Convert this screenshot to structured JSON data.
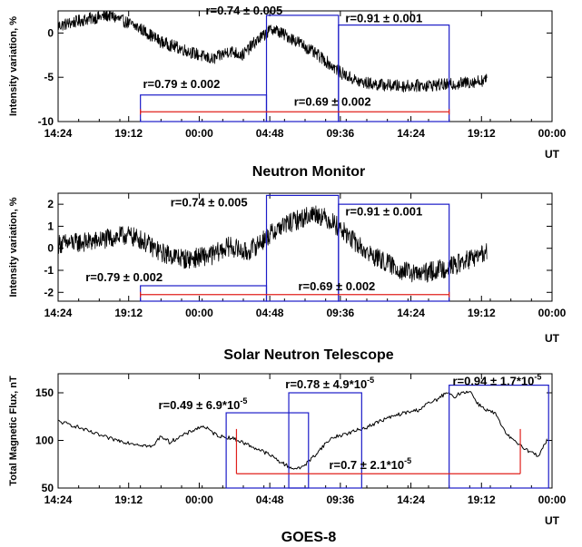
{
  "chart_data": [
    {
      "type": "line",
      "title": "Neutron Monitor",
      "ylabel": "Intensity variation, %",
      "xunit": "UT",
      "x_tick_labels": [
        "14:24",
        "19:12",
        "00:00",
        "04:48",
        "09:36",
        "14:24",
        "19:12",
        "00:00"
      ],
      "xlim_hours": [
        0,
        57.6
      ],
      "ylim": [
        -10,
        2.5
      ],
      "y_ticks": [
        0,
        -5,
        -10
      ],
      "y_tick_labels": [
        "0",
        "-5",
        "-10"
      ],
      "series": [
        {
          "x": [
            0,
            3,
            6,
            8,
            9.6,
            12,
            15,
            18,
            20,
            21.5,
            23,
            25,
            26,
            28,
            31,
            33,
            35,
            37,
            40,
            43,
            46,
            50
          ],
          "values": [
            0.8,
            1.5,
            2.0,
            1.2,
            0.5,
            -1.0,
            -2.0,
            -3.0,
            -2.0,
            -2.5,
            -1.0,
            0.5,
            0.0,
            -1.0,
            -3.0,
            -4.5,
            -5.5,
            -5.8,
            -6.0,
            -5.9,
            -5.8,
            -5.3
          ],
          "noise": 0.7
        }
      ],
      "boxes": [
        {
          "x0": 9.6,
          "x1": 24.3,
          "y0": -10,
          "y1": -7.0,
          "color": "#1c1cc8"
        },
        {
          "x0": 24.3,
          "x1": 32.7,
          "y0": -10,
          "y1": 2.0,
          "color": "#1c1cc8"
        },
        {
          "x0": 32.7,
          "x1": 45.6,
          "y0": -10,
          "y1": 0.9,
          "color": "#1c1cc8"
        }
      ],
      "red_lines": [
        {
          "x0": 9.6,
          "x1": 45.6,
          "y": -8.9,
          "color": "#e0201c"
        }
      ],
      "annotations": [
        {
          "text": "r=0.74 ± 0.005",
          "x": 17.2,
          "y": 2.1
        },
        {
          "text": "r=0.91 ± 0.001",
          "x": 33.5,
          "y": 1.2
        },
        {
          "text": "r=0.79 ± 0.002",
          "x": 9.9,
          "y": -6.2
        },
        {
          "text": "r=0.69 ± 0.002",
          "x": 27.5,
          "y": -8.2
        }
      ]
    },
    {
      "type": "line",
      "title": "Solar Neutron Telescope",
      "ylabel": "Intensity variation, %",
      "xunit": "UT",
      "x_tick_labels": [
        "14:24",
        "19:12",
        "00:00",
        "04:48",
        "09:36",
        "14:24",
        "19:12",
        "00:00"
      ],
      "xlim_hours": [
        0,
        57.6
      ],
      "ylim": [
        -2.4,
        2.5
      ],
      "y_ticks": [
        2,
        1,
        0,
        -1,
        -2
      ],
      "y_tick_labels": [
        "2",
        "1",
        "0",
        "-1",
        "-2"
      ],
      "series": [
        {
          "x": [
            0,
            4,
            8,
            9.6,
            12,
            15,
            18,
            20,
            22,
            24.3,
            26,
            28,
            30,
            32,
            34,
            36,
            38,
            40,
            42,
            44,
            46,
            48,
            50
          ],
          "values": [
            0.2,
            0.3,
            0.6,
            0.4,
            -0.2,
            -0.5,
            -0.3,
            0.1,
            -0.2,
            0.5,
            1.0,
            1.3,
            1.6,
            1.2,
            0.5,
            -0.2,
            -0.6,
            -1.0,
            -1.2,
            -1.0,
            -0.8,
            -0.5,
            -0.2
          ],
          "noise": 0.45
        }
      ],
      "boxes": [
        {
          "x0": 9.6,
          "x1": 24.3,
          "y0": -2.4,
          "y1": -1.7,
          "color": "#1c1cc8"
        },
        {
          "x0": 24.3,
          "x1": 32.7,
          "y0": -2.4,
          "y1": 2.4,
          "color": "#1c1cc8"
        },
        {
          "x0": 32.7,
          "x1": 45.6,
          "y0": -2.4,
          "y1": 2.0,
          "color": "#1c1cc8"
        }
      ],
      "red_lines": [
        {
          "x0": 9.6,
          "x1": 45.6,
          "y": -2.1,
          "color": "#e0201c"
        }
      ],
      "annotations": [
        {
          "text": "r=0.74 ± 0.005",
          "x": 13.1,
          "y": 1.9
        },
        {
          "text": "r=0.91 ± 0.001",
          "x": 33.5,
          "y": 1.5
        },
        {
          "text": "r=0.79 ± 0.002",
          "x": 3.2,
          "y": -1.5
        },
        {
          "text": "r=0.69 ± 0.002",
          "x": 28.0,
          "y": -1.9
        }
      ]
    },
    {
      "type": "line",
      "title": "GOES-8",
      "ylabel": "Total Magnetic Flux, nT",
      "xunit": "UT",
      "x_tick_labels": [
        "14:24",
        "19:12",
        "00:00",
        "04:48",
        "09:36",
        "14:24",
        "19:12",
        "00:00"
      ],
      "xlim_hours": [
        0,
        57.6
      ],
      "ylim": [
        50,
        170
      ],
      "y_ticks": [
        150,
        100,
        50
      ],
      "y_tick_labels": [
        "150",
        "100",
        "50"
      ],
      "series": [
        {
          "x": [
            0,
            2,
            4,
            6,
            8,
            10,
            11,
            12,
            13,
            14,
            15,
            16,
            17,
            18,
            19,
            20,
            21,
            22,
            23,
            24,
            25,
            26,
            27,
            28,
            29,
            30,
            31,
            32,
            34,
            36,
            38,
            40,
            42,
            43,
            44,
            45,
            45.6,
            46,
            47,
            48,
            49,
            50,
            51,
            52,
            53,
            54,
            55,
            56,
            57
          ],
          "values": [
            120,
            115,
            108,
            102,
            98,
            95,
            93,
            105,
            98,
            103,
            107,
            112,
            115,
            108,
            104,
            103,
            100,
            96,
            92,
            88,
            83,
            77,
            72,
            70,
            76,
            85,
            95,
            103,
            108,
            114,
            122,
            128,
            132,
            138,
            142,
            148,
            150,
            145,
            150,
            152,
            138,
            132,
            128,
            110,
            100,
            95,
            88,
            84,
            100
          ],
          "noise": 2.0
        }
      ],
      "boxes": [
        {
          "x0": 19.6,
          "x1": 29.2,
          "y0": 50,
          "y1": 129,
          "color": "#1c1cc8"
        },
        {
          "x0": 26.9,
          "x1": 35.4,
          "y0": 50,
          "y1": 150,
          "color": "#1c1cc8"
        },
        {
          "x0": 45.6,
          "x1": 57.2,
          "y0": 50,
          "y1": 158,
          "color": "#1c1cc8"
        }
      ],
      "red_lines": [
        {
          "x0": 20.8,
          "x1": 53.9,
          "y": 65,
          "color": "#e0201c"
        }
      ],
      "red_verticals": [
        {
          "x": 20.8,
          "y0": 65,
          "y1": 112
        },
        {
          "x": 53.9,
          "y0": 65,
          "y1": 112
        }
      ],
      "annotations": [
        {
          "text": "r=0.49 ± 6.9*10^-5",
          "x": 11.7,
          "y": 133
        },
        {
          "text": "r=0.78 ± 4.9*10^-5",
          "x": 26.5,
          "y": 155
        },
        {
          "text": "r=0.94 ± 1.7*10^-5",
          "x": 46.0,
          "y": 158
        },
        {
          "text": "r=0.7 ± 2.1*10^-5",
          "x": 31.6,
          "y": 70
        }
      ]
    }
  ]
}
